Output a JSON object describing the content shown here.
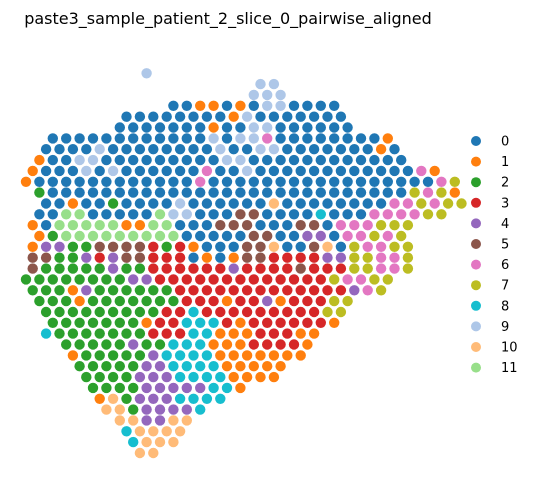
{
  "chart_data": {
    "type": "scatter",
    "title": "paste3_sample_patient_2_slice_0_pairwise_aligned",
    "xlabel": "",
    "ylabel": "",
    "axes_visible": false,
    "grid": false,
    "legend_placement": "right",
    "coordinate_note": "",
    "categories": [
      "0",
      "1",
      "2",
      "3",
      "4",
      "5",
      "6",
      "7",
      "8",
      "9",
      "10",
      "11"
    ],
    "colors": [
      "#1f77b4",
      "#ff7f0e",
      "#2ca02c",
      "#d62728",
      "#9467bd",
      "#8c564b",
      "#e377c2",
      "#bcbd22",
      "#17becf",
      "#aec7e8",
      "#ffbb78",
      "#98df8a"
    ],
    "xlim": [
      0,
      41
    ],
    "ylim": [
      0,
      42
    ],
    "rows": [
      [
        "9",
        18,
        "9"
      ],
      [
        "17.5",
        "9 9"
      ],
      [
        "17",
        "9 9 9"
      ],
      [
        "11",
        "0 0 1 1 0 1 0 9 9 0 0 0 0"
      ],
      [
        "7.5",
        "0 0 0 0 0 0 0 0 1 9 0 0 0 0 0 0 0"
      ],
      [
        "7",
        "0 0 0 0 0 0 0 1 0 0 9 9 0 0 0 0 0 0"
      ],
      [
        "2",
        "0 0 0 0 0 0 0 0 0 0 0 0 9 0 9 9 6 0 0 0 0 0 0 0 0 1"
      ],
      [
        "1.5",
        "0 0 0 0 9 0 0 0 0 0 0 0 0 9 0 0 9 9 0 0 0 0 0 0 0 1 0"
      ],
      [
        "1",
        "1 0 0 9 9 0 0 0 0 0 0 0 0 0 9 9 0 0 0 0 0 0 0 0 0 0 0 0"
      ],
      [
        "0.5",
        "1 0 0 0 9 0 9 0 0 0 0 0 0 6 0 0 9 0 0 0 0 0 0 0 0 0 0 0 0 6 1"
      ],
      [
        "0",
        "1 0 0 0 0 0 0 0 0 0 0 0 0 6 0 0 0 0 0 0 0 0 0 0 0 0 0 0 0 0 0 6 7"
      ],
      [
        "1",
        "2 0 0 0 0 0 0 0 0 0 0 0 0 0 0 0 0 0 0 0 0 0 0 0 0 0 0 0 7 6 7 1"
      ],
      [
        "1.5",
        "0 0 1 0 0 2 0 0 0 0 9 0 0 0 0 0 0 10 0 0 0 0 0 0 0 0 6 6 7 6 7 7"
      ],
      [
        "1",
        "0 0 11 11 0 0 0 0 0 11 9 9 0 0 0 5 5 0 0 0 0 8 0 0 0 6 6 6 6 7 7"
      ],
      [
        "0.5",
        "1 0 11 11 11 11 11 1 1 11 11 0 0 0 5 5 5 0 0 0 5 5 0 6 6 6 7 7 7"
      ],
      [
        "1",
        "1 2 11 11 11 11 11 11 11 11 11 0 0 0 0 0 5 5 0 0 4 4 0 6 6 7 6 7"
      ],
      [
        "0.5",
        "1 4 4 2 2 5 5 5 5 3 2 3 1 0 0 0 5 5 10 0 0 5 10 0 7 6 6 7 7"
      ],
      [
        "0.5",
        "5 5 2 2 4 3 4 5 5 3 3 3 0 1 0 1 5 5 3 3 3 3 4 4 7 7 6 6 7"
      ],
      [
        "0.5",
        "5 2 2 2 2 2 4 2 2 3 3 3 3 3 3 4 3 3 3 3 5 3 3 3 7 7 6 6 7"
      ],
      [
        "0",
        "2 2 2 2 2 2 2 2 4 4 3 3 3 3 3 3 3 3 3 3 3 3 3 7 6 6 7 7"
      ],
      [
        "0.5",
        "2 2 2 1 4 2 2 2 2 2 2 3 3 3 3 3 3 3 3 3 3 3 3 3 4 6 7"
      ],
      [
        "1",
        "2 2 2 1 2 2 2 2 2 2 2 3 3 3 1 3 3 4 1 3 3 3 7 7"
      ],
      [
        "1.5",
        "2 2 2 2 2 2 2 2 2 3 3 8 3 3 3 3 3 3 3 3 3 7 7"
      ],
      [
        "2",
        "2 2 2 2 2 2 2 1 3 3 8 8 8 3 1 3 3 3 3 3 3 1"
      ],
      [
        "1.5",
        "8 2 2 2 2 2 2 2 3 3 3 8 8 1 1 1 3 3 3 1 1"
      ],
      [
        "3",
        "2 2 2 2 2 4 2 2 8 8 8 1 1 1 3 3 3 3 1"
      ],
      [
        "3.5",
        "1 2 2 2 2 2 4 8 8 8 8 1 1 1 1 1 1 1"
      ],
      [
        "4",
        "2 2 2 2 2 4 4 8 8 8 8 1 1 1 1 1"
      ],
      [
        "4.5",
        "2 2 2 2 4 4 4 8 8 8 8 1 1 1 1"
      ],
      [
        "5",
        "2 2 2 2 4 4 4 4 4 8 8 1"
      ],
      [
        "5.5",
        "1 10 2 4 4 4 8 8 8 8"
      ],
      [
        "6",
        "10 10 2 4 4 4 4 8"
      ],
      [
        "7",
        "10 10 4 4 10 10"
      ],
      [
        "7.5",
        "8 10 10 10 10"
      ],
      [
        "8",
        "8 10 10 10"
      ],
      [
        "8.5",
        "10 10"
      ]
    ]
  }
}
